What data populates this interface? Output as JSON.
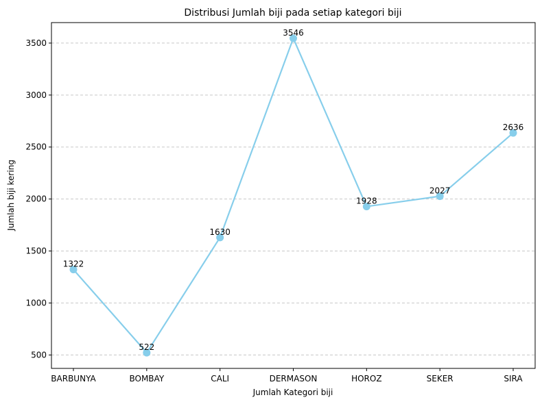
{
  "chart_data": {
    "type": "line",
    "title": "Distribusi Jumlah biji pada setiap kategori biji",
    "xlabel": "Jumlah Kategori biji",
    "ylabel": "Jumlah biji kering",
    "categories": [
      "BARBUNYA",
      "BOMBAY",
      "CALI",
      "DERMASON",
      "HOROZ",
      "SEKER",
      "SIRA"
    ],
    "values": [
      1322,
      522,
      1630,
      3546,
      1928,
      2027,
      2636
    ],
    "data_labels": [
      "1322",
      "522",
      "1630",
      "3546",
      "1928",
      "2027",
      "2636"
    ],
    "ylim": [
      371,
      3697
    ],
    "yticks": [
      500,
      1000,
      1500,
      2000,
      2500,
      3000,
      3500
    ],
    "ytick_labels": [
      "500",
      "1000",
      "1500",
      "2000",
      "2500",
      "3000",
      "3500"
    ],
    "grid": "y-dashed",
    "color": "#87CEEB"
  }
}
